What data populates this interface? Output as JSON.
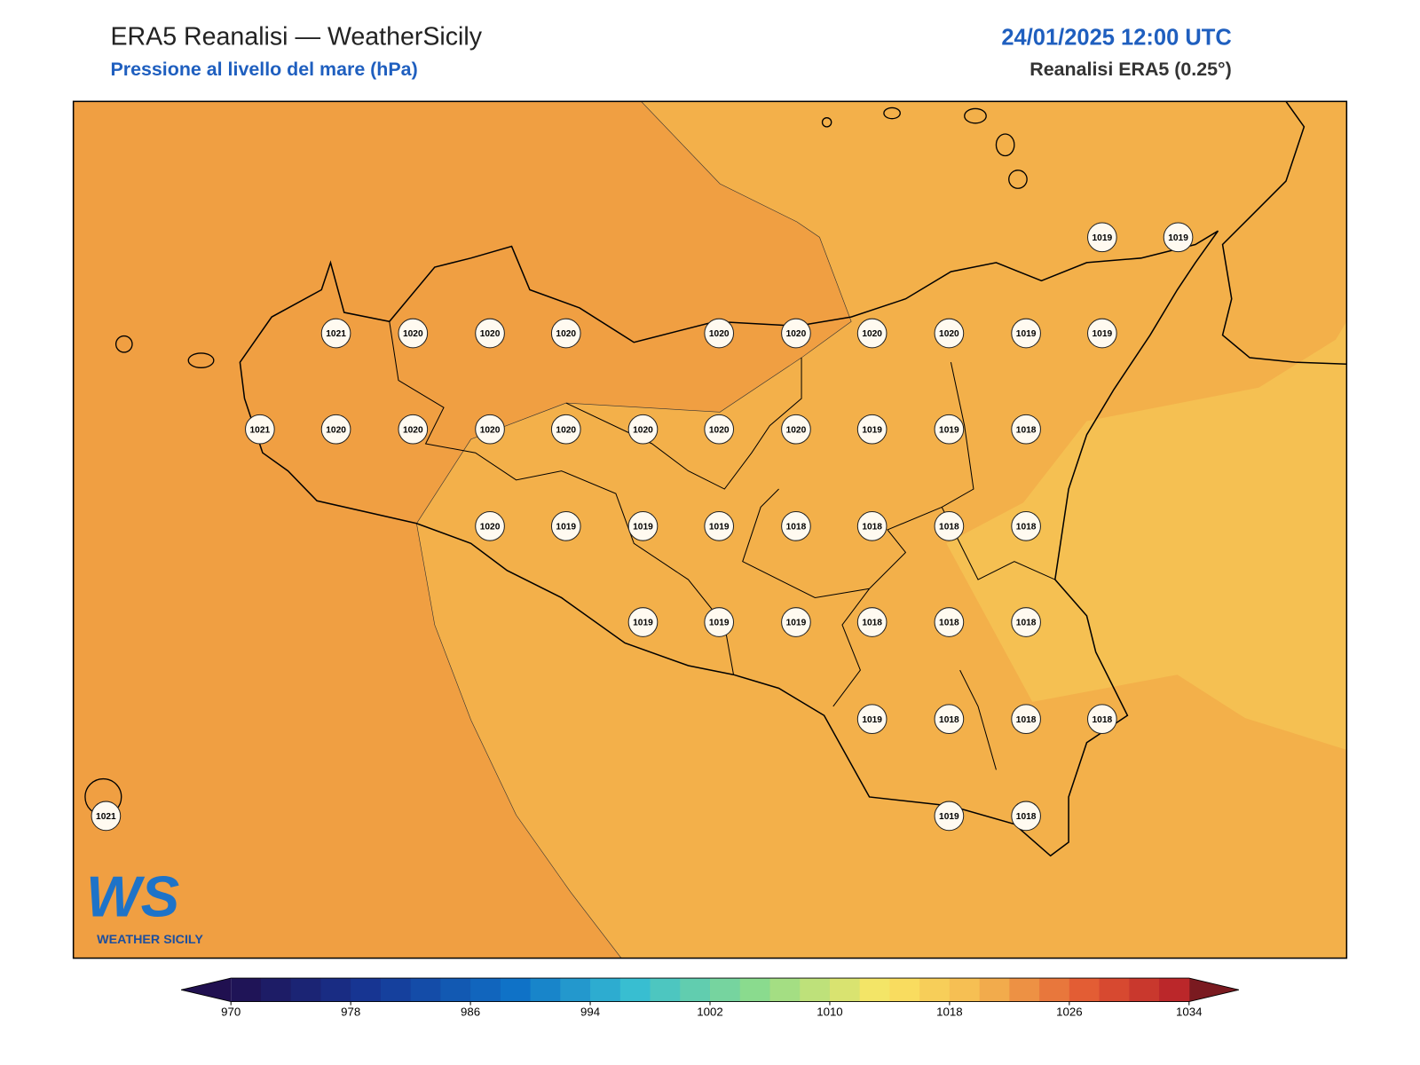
{
  "header": {
    "title": "ERA5 Reanalisi — WeatherSicily",
    "subtitle": "Pressione al livello del mare (hPa)",
    "datetime": "24/01/2025 12:00 UTC",
    "source": "Reanalisi ERA5 (0.25°)"
  },
  "stations": [
    1019,
    1019,
    1021,
    1020,
    1020,
    1020,
    1020,
    1020,
    1020,
    1020,
    1019,
    1019,
    1021,
    1020,
    1020,
    1020,
    1020,
    1020,
    1020,
    1020,
    1019,
    1019,
    1018,
    1020,
    1019,
    1019,
    1019,
    1018,
    1018,
    1018,
    1018,
    1019,
    1019,
    1019,
    1018,
    1018,
    1018,
    1019,
    1018,
    1018,
    1018,
    1021,
    1019,
    1018
  ],
  "colorbar": {
    "ticks": [
      970,
      978,
      986,
      994,
      1002,
      1010,
      1018,
      1026,
      1034
    ]
  },
  "logo": {
    "mark": "WS",
    "name": "WEATHER SICILY"
  }
}
